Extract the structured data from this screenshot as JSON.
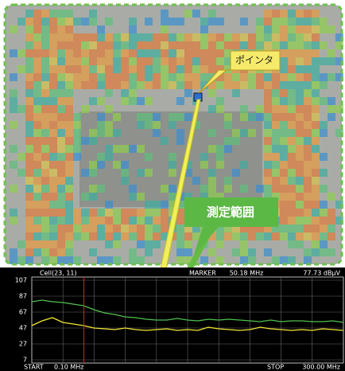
{
  "callouts": {
    "pointer": "ポインタ",
    "range": "測定範囲"
  },
  "chart_data": {
    "type": "line",
    "cell": "Cell(23, 11)",
    "marker_title": "MARKER",
    "marker_freq": {
      "value": 50.18,
      "label": "50.18 MHz"
    },
    "marker_level": "77.73 dBμV",
    "start_title": "START",
    "start": {
      "value": 0.1,
      "label": "0.10 MHz"
    },
    "stop_title": "STOP",
    "stop": {
      "value": 300,
      "label": "300.00 MHz"
    },
    "ylim": [
      7,
      107
    ],
    "yticks": [
      7,
      27,
      47,
      67,
      87,
      107
    ],
    "x": [
      0.1,
      10,
      20,
      30,
      40,
      50,
      60,
      70,
      80,
      90,
      100,
      110,
      120,
      130,
      140,
      150,
      160,
      170,
      180,
      190,
      200,
      210,
      220,
      230,
      240,
      250,
      260,
      270,
      280,
      290,
      300
    ],
    "series": [
      {
        "color": "#4fc14f",
        "values": [
          80,
          82,
          80,
          79,
          77,
          75,
          70,
          66,
          64,
          61,
          60,
          58,
          57,
          57,
          59,
          57,
          56,
          58,
          57,
          58,
          57,
          56,
          55,
          57,
          55,
          56,
          56,
          55,
          55,
          56,
          54
        ]
      },
      {
        "color": "#f2e632",
        "values": [
          50,
          56,
          60,
          54,
          52,
          50,
          47,
          46,
          45,
          47,
          45,
          44,
          45,
          46,
          44,
          45,
          44,
          48,
          46,
          45,
          44,
          45,
          48,
          46,
          45,
          44,
          45,
          44,
          46,
          45,
          44
        ]
      }
    ]
  }
}
